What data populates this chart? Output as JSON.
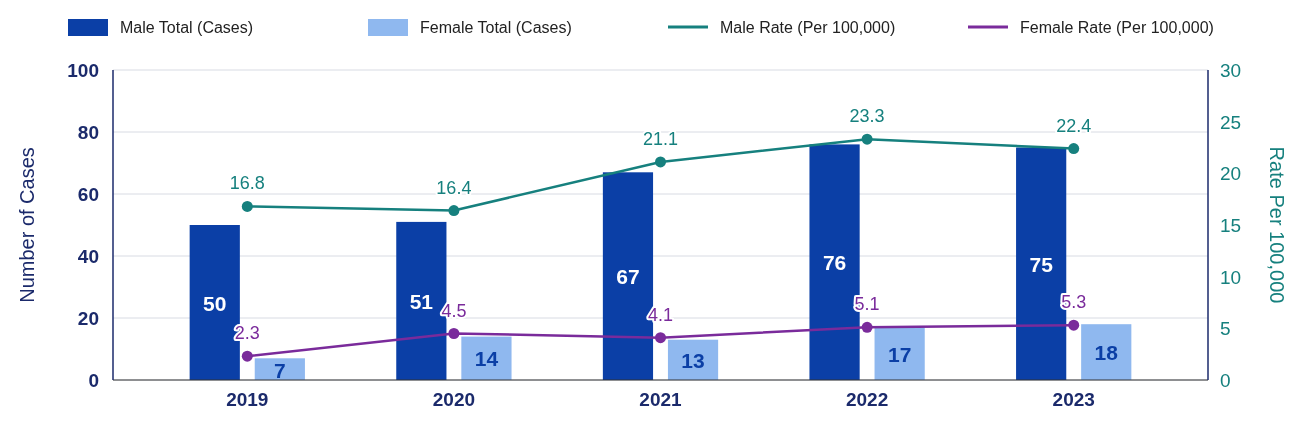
{
  "chart_data": {
    "type": "bar",
    "categories": [
      "2019",
      "2020",
      "2021",
      "2022",
      "2023"
    ],
    "ylabel": "Number of Cases",
    "y2label": "Rate Per 100,000",
    "ylim": [
      0,
      100
    ],
    "yticks": [
      0,
      20,
      40,
      60,
      80,
      100
    ],
    "y2lim": [
      0,
      30
    ],
    "y2ticks": [
      0,
      5,
      10,
      15,
      20,
      25,
      30
    ],
    "grid": "y",
    "legend": "top",
    "data_labels": true,
    "marker": "circle",
    "series": [
      {
        "name": "Male Total (Cases)",
        "color": "#0b3fa6",
        "values": [
          50,
          51,
          67,
          76,
          75
        ]
      },
      {
        "name": "Female Total (Cases)",
        "color": "#8fb8ef",
        "values": [
          7,
          14,
          13,
          17,
          18
        ]
      },
      {
        "name": "Male Rate (Per 100,000)",
        "type": "line",
        "axis": "y2",
        "color": "#16807e",
        "values": [
          16.8,
          16.4,
          21.1,
          23.3,
          22.4
        ]
      },
      {
        "name": "Female Rate (Per 100,000)",
        "type": "line",
        "axis": "y2",
        "color": "#7a2b9b",
        "values": [
          2.3,
          4.5,
          4.1,
          5.1,
          5.3
        ]
      }
    ]
  }
}
